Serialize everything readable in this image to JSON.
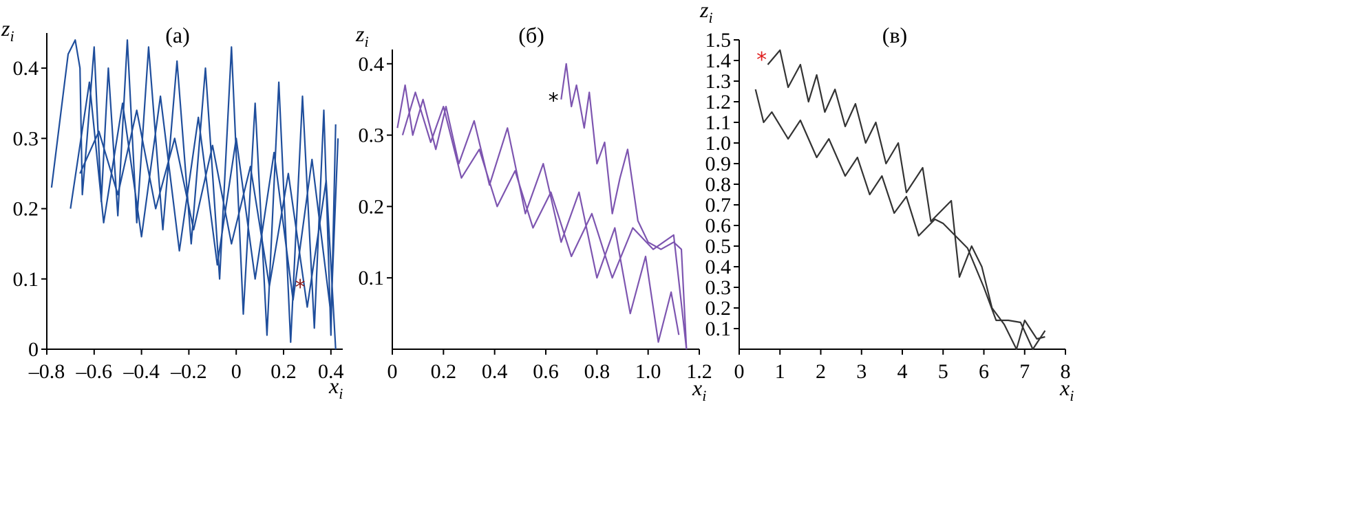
{
  "chart_data": [
    {
      "type": "line",
      "panel": "a",
      "title": "(а)",
      "xlabel": "x",
      "xlabel_sub": "i",
      "ylabel": "z",
      "ylabel_sub": "i",
      "xlim": [
        -0.8,
        0.45
      ],
      "ylim": [
        0,
        0.45
      ],
      "xticks": [
        -0.8,
        -0.6,
        -0.4,
        -0.2,
        0,
        0.2,
        0.4
      ],
      "xtick_labels": [
        "–0.8",
        "–0.6",
        "–0.4",
        "–0.2",
        "0",
        "0.2",
        "0.4"
      ],
      "yticks": [
        0,
        0.1,
        0.2,
        0.3,
        0.4
      ],
      "ytick_labels": [
        "0",
        "0.1",
        "0.2",
        "0.3",
        "0.4"
      ],
      "color": "#1f4e9c",
      "marker": {
        "symbol": "*",
        "x": 0.27,
        "y": 0.09,
        "color": "#8b1a1a"
      },
      "series": [
        {
          "x": [
            -0.78,
            -0.71,
            -0.68,
            -0.66,
            -0.65,
            -0.63,
            -0.6,
            -0.57,
            -0.54,
            -0.5,
            -0.46,
            -0.42,
            -0.37,
            -0.31,
            -0.25,
            -0.19,
            -0.13,
            -0.07,
            -0.02,
            0.03,
            0.08,
            0.13,
            0.18,
            0.23,
            0.28,
            0.33,
            0.37,
            0.4,
            0.42
          ],
          "y": [
            0.23,
            0.42,
            0.44,
            0.4,
            0.22,
            0.3,
            0.43,
            0.21,
            0.4,
            0.19,
            0.44,
            0.18,
            0.43,
            0.17,
            0.41,
            0.15,
            0.4,
            0.1,
            0.43,
            0.05,
            0.35,
            0.02,
            0.38,
            0.01,
            0.36,
            0.03,
            0.34,
            0.02,
            0.32
          ]
        },
        {
          "x": [
            -0.7,
            -0.62,
            -0.56,
            -0.48,
            -0.4,
            -0.32,
            -0.24,
            -0.16,
            -0.08,
            0.0,
            0.08,
            0.16,
            0.24,
            0.32,
            0.4,
            0.43
          ],
          "y": [
            0.2,
            0.38,
            0.18,
            0.35,
            0.16,
            0.36,
            0.14,
            0.33,
            0.12,
            0.3,
            0.1,
            0.28,
            0.07,
            0.27,
            0.05,
            0.3
          ]
        },
        {
          "x": [
            -0.66,
            -0.58,
            -0.5,
            -0.42,
            -0.34,
            -0.26,
            -0.18,
            -0.1,
            -0.02,
            0.06,
            0.14,
            0.22,
            0.3,
            0.38,
            0.42
          ],
          "y": [
            0.25,
            0.31,
            0.22,
            0.34,
            0.2,
            0.3,
            0.17,
            0.29,
            0.15,
            0.26,
            0.09,
            0.25,
            0.06,
            0.24,
            0.0
          ]
        }
      ]
    },
    {
      "type": "line",
      "panel": "b",
      "title": "(б)",
      "xlabel": "x",
      "xlabel_sub": "i",
      "ylabel": "z",
      "ylabel_sub": "i",
      "xlim": [
        0,
        1.2
      ],
      "ylim": [
        0,
        0.42
      ],
      "xticks": [
        0,
        0.2,
        0.4,
        0.6,
        0.8,
        1.0,
        1.2
      ],
      "xtick_labels": [
        "0",
        "0.2",
        "0.4",
        "0.6",
        "0.8",
        "1.0",
        "1.2"
      ],
      "yticks": [
        0.1,
        0.2,
        0.3,
        0.4
      ],
      "ytick_labels": [
        "0.1",
        "0.2",
        "0.3",
        "0.4"
      ],
      "color": "#7d55b0",
      "marker": {
        "symbol": "*",
        "x": 0.63,
        "y": 0.35,
        "color": "#000000"
      },
      "series": [
        {
          "x": [
            0.02,
            0.05,
            0.08,
            0.12,
            0.17,
            0.21,
            0.26,
            0.32,
            0.38,
            0.45,
            0.52,
            0.59,
            0.66,
            0.73,
            0.8,
            0.87,
            0.93,
            0.99,
            1.04,
            1.09,
            1.12
          ],
          "y": [
            0.31,
            0.37,
            0.3,
            0.35,
            0.28,
            0.34,
            0.26,
            0.32,
            0.23,
            0.31,
            0.19,
            0.26,
            0.15,
            0.22,
            0.1,
            0.17,
            0.05,
            0.13,
            0.01,
            0.08,
            0.02
          ]
        },
        {
          "x": [
            0.04,
            0.09,
            0.15,
            0.2,
            0.27,
            0.34,
            0.41,
            0.48,
            0.55,
            0.62,
            0.7,
            0.78,
            0.86,
            0.94,
            1.02,
            1.1,
            1.15
          ],
          "y": [
            0.3,
            0.36,
            0.29,
            0.34,
            0.24,
            0.28,
            0.2,
            0.25,
            0.17,
            0.22,
            0.13,
            0.19,
            0.1,
            0.17,
            0.14,
            0.16,
            0.0
          ]
        },
        {
          "x": [
            0.66,
            0.68,
            0.7,
            0.72,
            0.75,
            0.77,
            0.8,
            0.83,
            0.86,
            0.89,
            0.92,
            0.96,
            1.0,
            1.05,
            1.1,
            1.13,
            1.15
          ],
          "y": [
            0.35,
            0.4,
            0.34,
            0.37,
            0.31,
            0.36,
            0.26,
            0.29,
            0.19,
            0.24,
            0.28,
            0.18,
            0.15,
            0.14,
            0.15,
            0.14,
            0.0
          ]
        }
      ]
    },
    {
      "type": "line",
      "panel": "c",
      "title": "(в)",
      "xlabel": "x",
      "xlabel_sub": "i",
      "ylabel": "z",
      "ylabel_sub": "i",
      "xlim": [
        0,
        8
      ],
      "ylim": [
        0,
        1.5
      ],
      "xticks": [
        0,
        1,
        2,
        3,
        4,
        5,
        6,
        7,
        8
      ],
      "xtick_labels": [
        "0",
        "1",
        "2",
        "3",
        "4",
        "5",
        "6",
        "7",
        "8"
      ],
      "yticks": [
        0.1,
        0.2,
        0.3,
        0.4,
        0.5,
        0.6,
        0.7,
        0.8,
        0.9,
        1.0,
        1.1,
        1.2,
        1.3,
        1.4,
        1.5
      ],
      "ytick_labels": [
        "0.1",
        "0.2",
        "0.3",
        "0.4",
        "0.5",
        "0.6",
        "0.7",
        "0.8",
        "0.9",
        "1.0",
        "1.1",
        "1.2",
        "1.3",
        "1.4",
        "1.5"
      ],
      "color": "#333333",
      "marker": {
        "symbol": "*",
        "x": 0.55,
        "y": 1.41,
        "color": "#e02020"
      },
      "series": [
        {
          "x": [
            0.7,
            1.0,
            1.2,
            1.5,
            1.7,
            1.9,
            2.1,
            2.35,
            2.6,
            2.85,
            3.1,
            3.35,
            3.6,
            3.9,
            4.1,
            4.5,
            4.7,
            5.2,
            5.4,
            5.7,
            5.95,
            6.2,
            6.5,
            6.8,
            7.0,
            7.3,
            7.5
          ],
          "y": [
            1.38,
            1.45,
            1.27,
            1.38,
            1.2,
            1.33,
            1.15,
            1.26,
            1.08,
            1.19,
            1.0,
            1.1,
            0.9,
            1.0,
            0.76,
            0.88,
            0.62,
            0.72,
            0.35,
            0.5,
            0.4,
            0.2,
            0.12,
            0.0,
            0.14,
            0.05,
            0.06
          ]
        },
        {
          "x": [
            0.4,
            0.6,
            0.8,
            1.2,
            1.5,
            1.9,
            2.2,
            2.6,
            2.9,
            3.2,
            3.5,
            3.8,
            4.1,
            4.4,
            4.8,
            5.0,
            5.6,
            6.0,
            6.3,
            6.6,
            6.9,
            7.2,
            7.5
          ],
          "y": [
            1.26,
            1.1,
            1.15,
            1.02,
            1.11,
            0.93,
            1.02,
            0.84,
            0.93,
            0.75,
            0.84,
            0.66,
            0.74,
            0.55,
            0.63,
            0.61,
            0.49,
            0.3,
            0.14,
            0.14,
            0.13,
            0.0,
            0.09
          ]
        }
      ]
    }
  ]
}
